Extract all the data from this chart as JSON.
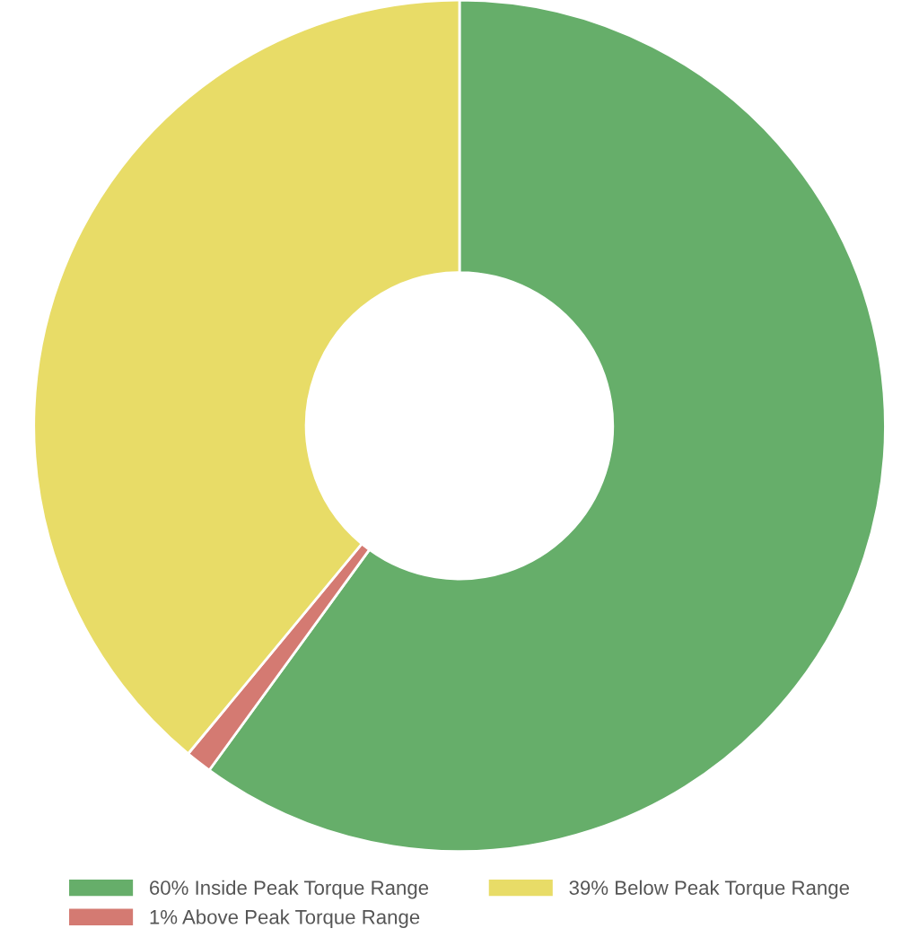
{
  "chart_data": {
    "type": "donut",
    "categories": [
      "60% Inside Peak Torque Range",
      "1% Above Peak Torque Range",
      "39% Below Peak Torque Range"
    ],
    "values": [
      60,
      1,
      39
    ],
    "colors": [
      "#66ae6a",
      "#d47a72",
      "#e8dc67"
    ],
    "legend": "bottom"
  }
}
